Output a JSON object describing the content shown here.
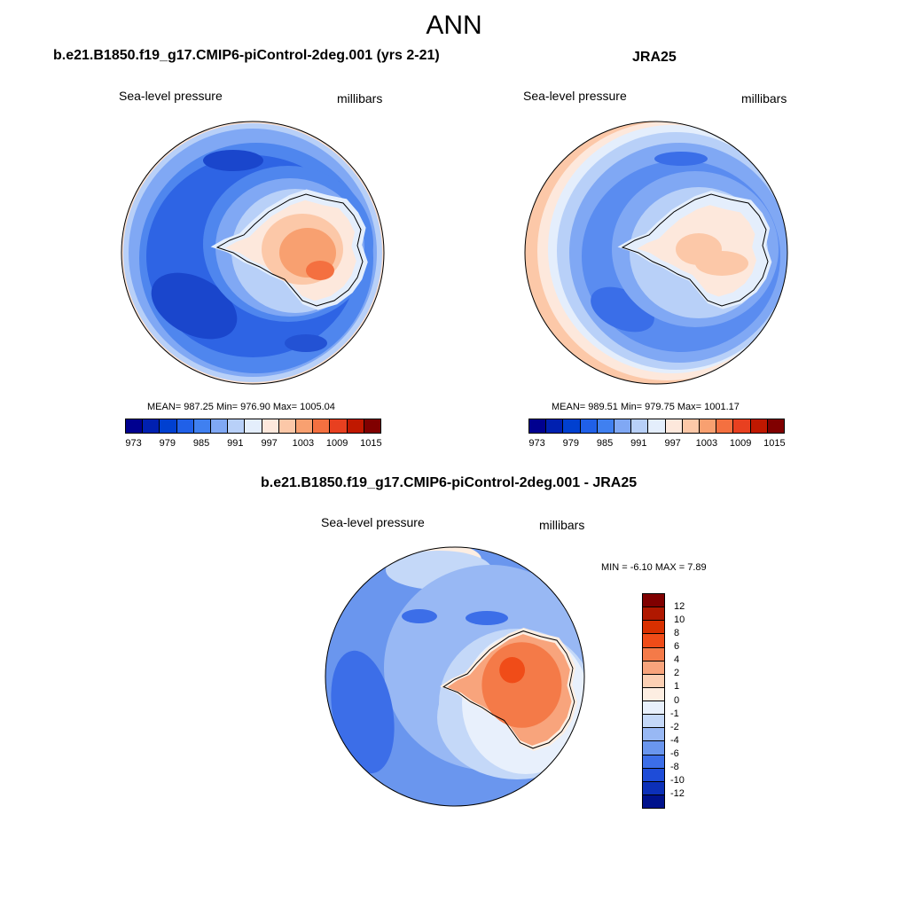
{
  "title": "ANN",
  "colors": {
    "abs_scale": [
      "#00008f",
      "#0020b0",
      "#0040d0",
      "#2060e8",
      "#4080f0",
      "#80a8f4",
      "#b8d0f8",
      "#e4eefc",
      "#fde8dc",
      "#fcc8a8",
      "#f8a070",
      "#f47040",
      "#e84020",
      "#c01800",
      "#800000"
    ],
    "diff_scale": [
      "#800000",
      "#b01800",
      "#d83000",
      "#f04c18",
      "#f47a48",
      "#f8a47c",
      "#fcd0b4",
      "#fdeee2",
      "#e8f0fc",
      "#c4d8f8",
      "#98b8f4",
      "#6a96ee",
      "#3c6ee8",
      "#1e4cd8",
      "#0c30b8",
      "#00128c"
    ]
  },
  "panels": {
    "left": {
      "title": "b.e21.B1850.f19_g17.CMIP6-piControl-2deg.001 (yrs 2-21)",
      "variable": "Sea-level pressure",
      "units": "millibars",
      "stats": "MEAN= 987.25  Min= 976.90  Max= 1005.04",
      "labels": [
        "973",
        "979",
        "985",
        "991",
        "997",
        "1003",
        "1009",
        "1015"
      ]
    },
    "right": {
      "title": "JRA25",
      "variable": "Sea-level pressure",
      "units": "millibars",
      "stats": "MEAN= 989.51  Min= 979.75  Max= 1001.17",
      "labels": [
        "973",
        "979",
        "985",
        "991",
        "997",
        "1003",
        "1009",
        "1015"
      ]
    },
    "diff": {
      "title": "b.e21.B1850.f19_g17.CMIP6-piControl-2deg.001 - JRA25",
      "variable": "Sea-level pressure",
      "units": "millibars",
      "stats": "MIN =  -6.10 MAX =   7.89",
      "labels": [
        "12",
        "10",
        "8",
        "6",
        "4",
        "2",
        "1",
        "0",
        "-1",
        "-2",
        "-4",
        "-6",
        "-8",
        "-10",
        "-12"
      ]
    }
  }
}
